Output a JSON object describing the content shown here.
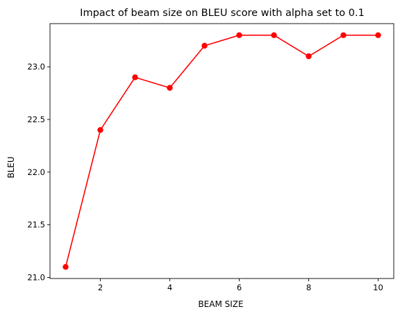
{
  "chart_data": {
    "type": "line",
    "title": "Impact of beam size on BLEU score with alpha set to 0.1",
    "xlabel": "BEAM SIZE",
    "ylabel": "BLEU",
    "x": [
      1,
      2,
      3,
      4,
      5,
      6,
      7,
      8,
      9,
      10
    ],
    "series": [
      {
        "values": [
          21.1,
          22.4,
          22.9,
          22.8,
          23.2,
          23.3,
          23.3,
          23.1,
          23.3,
          23.3
        ]
      }
    ],
    "xlim": [
      0.55,
      10.45
    ],
    "ylim": [
      20.99,
      23.41
    ],
    "xticks": [
      2,
      4,
      6,
      8,
      10
    ],
    "xtick_labels": [
      "2",
      "4",
      "6",
      "8",
      "10"
    ],
    "yticks": [
      21.0,
      21.5,
      22.0,
      22.5,
      23.0
    ],
    "ytick_labels": [
      "21.0",
      "21.5",
      "22.0",
      "22.5",
      "23.0"
    ],
    "grid": false,
    "line_color": "#ff0000",
    "marker": "circle"
  }
}
